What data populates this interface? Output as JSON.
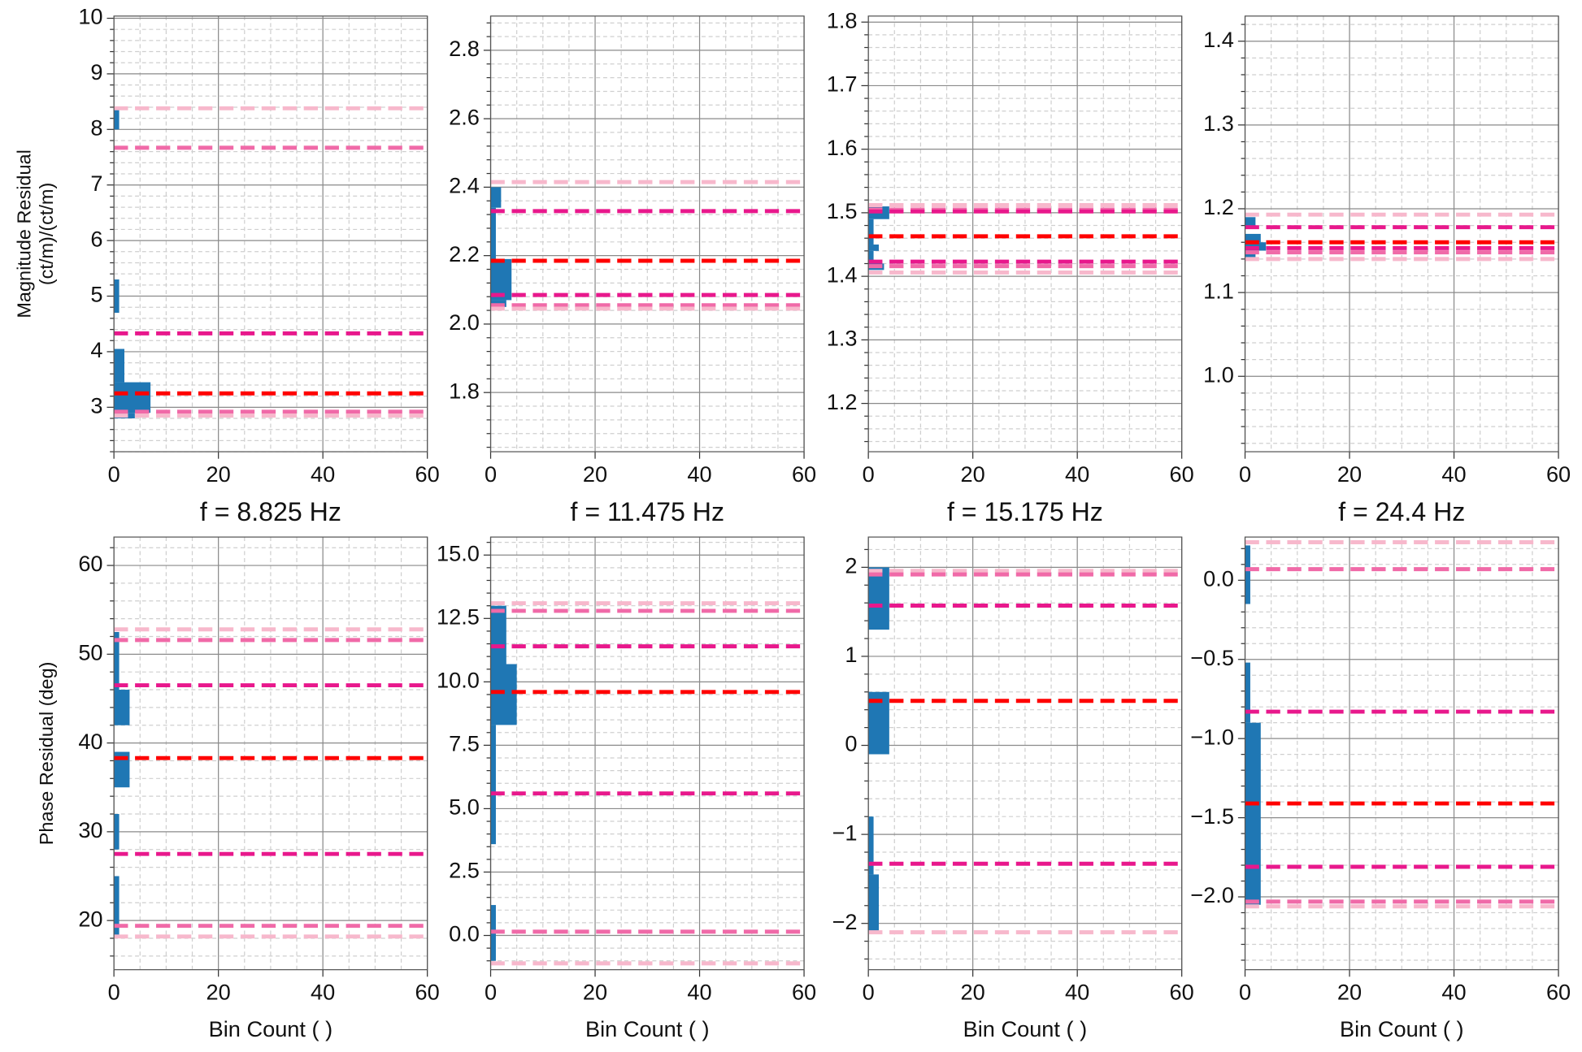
{
  "chart_data": [
    {
      "type": "histogram",
      "orientation": "horizontal",
      "color": "#1f77b4",
      "grid": true,
      "ylabel": [
        "Magnitude Residual",
        "(ct/m)/(ct/m)"
      ],
      "xlim": [
        0,
        60
      ],
      "xticks": [
        0,
        20,
        40,
        60
      ],
      "ylim": [
        2.2,
        10.04
      ],
      "yticks": [
        3,
        4,
        5,
        6,
        7,
        8,
        9,
        10
      ],
      "bins": [
        2.8,
        2.9,
        3.45,
        4.05,
        4.7,
        5.3,
        8.0,
        8.35
      ],
      "counts": [
        4,
        7,
        2,
        0,
        1,
        0,
        1
      ],
      "hlines": [
        {
          "value": 8.38,
          "color": "#f7b8cc"
        },
        {
          "value": 7.67,
          "color": "#f06aa8"
        },
        {
          "value": 4.33,
          "color": "#e8188c"
        },
        {
          "value": 3.25,
          "color": "#ff0000"
        },
        {
          "value": 2.92,
          "color": "#f06aa8"
        },
        {
          "value": 2.85,
          "color": "#f7b8cc"
        }
      ]
    },
    {
      "type": "histogram",
      "orientation": "horizontal",
      "color": "#1f77b4",
      "grid": true,
      "xlim": [
        0,
        60
      ],
      "xticks": [
        0,
        20,
        40,
        60
      ],
      "ylim": [
        1.627,
        2.9
      ],
      "yticks": [
        1.8,
        {
          "value": 2,
          "label": "2.0"
        },
        2.2,
        2.4,
        2.6,
        2.8
      ],
      "bins": [
        2.05,
        2.07,
        2.19,
        2.34,
        2.4
      ],
      "counts": [
        3,
        4,
        1,
        2
      ],
      "hlines": [
        {
          "value": 2.415,
          "color": "#f7b8cc"
        },
        {
          "value": 2.33,
          "color": "#e8188c"
        },
        {
          "value": 2.185,
          "color": "#ff0000"
        },
        {
          "value": 2.085,
          "color": "#e8188c"
        },
        {
          "value": 2.055,
          "color": "#f06aa8"
        },
        {
          "value": 2.045,
          "color": "#f7b8cc"
        }
      ]
    },
    {
      "type": "histogram",
      "orientation": "horizontal",
      "color": "#1f77b4",
      "grid": true,
      "xlim": [
        0,
        60
      ],
      "xticks": [
        0,
        20,
        40,
        60
      ],
      "ylim": [
        1.124,
        1.8095
      ],
      "yticks": [
        1.2,
        1.3,
        1.4,
        1.5,
        1.6,
        1.7,
        1.8
      ],
      "bins": [
        1.41,
        1.42,
        1.44,
        1.45,
        1.49,
        1.51
      ],
      "counts": [
        3,
        1,
        2,
        1,
        4
      ],
      "hlines": [
        {
          "value": 1.512,
          "color": "#f7b8cc"
        },
        {
          "value": 1.505,
          "color": "#f06aa8"
        },
        {
          "value": 1.502,
          "color": "#e8188c"
        },
        {
          "value": 1.463,
          "color": "#ff0000"
        },
        {
          "value": 1.423,
          "color": "#e8188c"
        },
        {
          "value": 1.416,
          "color": "#f06aa8"
        },
        {
          "value": 1.406,
          "color": "#f7b8cc"
        }
      ]
    },
    {
      "type": "histogram",
      "orientation": "horizontal",
      "color": "#1f77b4",
      "grid": true,
      "xlim": [
        0,
        60
      ],
      "xticks": [
        0,
        20,
        40,
        60
      ],
      "ylim": [
        0.91,
        1.43
      ],
      "yticks": [
        {
          "value": 1,
          "label": "1.0"
        },
        1.1,
        1.2,
        1.3,
        1.4
      ],
      "bins": [
        1.14,
        1.15,
        1.16,
        1.17,
        1.18,
        1.19
      ],
      "counts": [
        2,
        4,
        3,
        0,
        2
      ],
      "hlines": [
        {
          "value": 1.193,
          "color": "#f7b8cc"
        },
        {
          "value": 1.178,
          "color": "#e8188c"
        },
        {
          "value": 1.16,
          "color": "#ff0000"
        },
        {
          "value": 1.153,
          "color": "#e8188c"
        },
        {
          "value": 1.148,
          "color": "#f06aa8"
        },
        {
          "value": 1.14,
          "color": "#f7b8cc"
        }
      ]
    },
    {
      "type": "histogram",
      "orientation": "horizontal",
      "color": "#1f77b4",
      "grid": true,
      "title": "f = 8.825 Hz",
      "xlabel": "Bin Count ( )",
      "ylabel": [
        "Phase Residual (deg)"
      ],
      "xlim": [
        0,
        60
      ],
      "xticks": [
        0,
        20,
        40,
        60
      ],
      "ylim": [
        14.46,
        63.2
      ],
      "yticks": [
        20,
        30,
        40,
        50,
        60
      ],
      "bins": [
        18,
        25,
        28,
        32,
        35,
        39,
        42,
        46,
        52.5
      ],
      "counts": [
        1,
        0,
        1,
        0,
        3,
        0,
        3,
        1
      ],
      "hlines": [
        {
          "value": 52.8,
          "color": "#f7b8cc"
        },
        {
          "value": 51.6,
          "color": "#f06aa8"
        },
        {
          "value": 46.5,
          "color": "#e8188c"
        },
        {
          "value": 38.3,
          "color": "#ff0000"
        },
        {
          "value": 27.5,
          "color": "#e8188c"
        },
        {
          "value": 19.4,
          "color": "#f06aa8"
        },
        {
          "value": 18.2,
          "color": "#f7b8cc"
        }
      ]
    },
    {
      "type": "histogram",
      "orientation": "horizontal",
      "color": "#1f77b4",
      "grid": true,
      "title": "f = 11.475 Hz",
      "xlabel": "Bin Count ( )",
      "xlim": [
        0,
        60
      ],
      "xticks": [
        0,
        20,
        40,
        60
      ],
      "ylim": [
        -1.35,
        15.71
      ],
      "yticks": [
        {
          "value": 0,
          "label": "0.0"
        },
        2.5,
        {
          "value": 5,
          "label": "5.0"
        },
        7.5,
        {
          "value": 10,
          "label": "10.0"
        },
        12.5,
        {
          "value": 15,
          "label": "15.0"
        }
      ],
      "bins": [
        -1.0,
        1.2,
        3.6,
        8.3,
        10.7,
        13.0
      ],
      "counts": [
        1,
        0,
        1,
        5,
        3
      ],
      "hlines": [
        {
          "value": 13.1,
          "color": "#f7b8cc"
        },
        {
          "value": 12.8,
          "color": "#f06aa8"
        },
        {
          "value": 11.4,
          "color": "#e8188c"
        },
        {
          "value": 9.6,
          "color": "#ff0000"
        },
        {
          "value": 5.6,
          "color": "#e8188c"
        },
        {
          "value": 0.15,
          "color": "#f06aa8"
        },
        {
          "value": -1.1,
          "color": "#f7b8cc"
        }
      ]
    },
    {
      "type": "histogram",
      "orientation": "horizontal",
      "color": "#1f77b4",
      "grid": true,
      "title": "f = 15.175 Hz",
      "xlabel": "Bin Count ( )",
      "xlim": [
        0,
        60
      ],
      "xticks": [
        0,
        20,
        40,
        60
      ],
      "ylim": [
        -2.52,
        2.34
      ],
      "yticks": [
        {
          "value": -2,
          "label": "−2"
        },
        {
          "value": -1,
          "label": "−1"
        },
        0,
        1,
        2
      ],
      "bins": [
        -2.1,
        -1.45,
        -0.8,
        -0.1,
        0.6,
        1.3,
        2.0
      ],
      "counts": [
        2,
        1,
        0,
        4,
        0,
        4
      ],
      "hlines": [
        {
          "value": 1.96,
          "color": "#f7b8cc"
        },
        {
          "value": 1.92,
          "color": "#f06aa8"
        },
        {
          "value": 1.57,
          "color": "#e8188c"
        },
        {
          "value": 0.5,
          "color": "#ff0000"
        },
        {
          "value": -1.33,
          "color": "#e8188c"
        },
        {
          "value": -2.1,
          "color": "#f7b8cc"
        }
      ]
    },
    {
      "type": "histogram",
      "orientation": "horizontal",
      "color": "#1f77b4",
      "grid": true,
      "title": "f = 24.4 Hz",
      "xlabel": "Bin Count ( )",
      "xlim": [
        0,
        60
      ],
      "xticks": [
        0,
        20,
        40,
        60
      ],
      "ylim": [
        -2.46,
        0.273
      ],
      "yticks": [
        {
          "value": -2,
          "label": "−2.0"
        },
        {
          "value": -1.5,
          "label": "−1.5"
        },
        {
          "value": -1,
          "label": "−1.0"
        },
        {
          "value": -0.5,
          "label": "−0.5"
        },
        {
          "value": 0,
          "label": "0.0"
        }
      ],
      "bins": [
        -2.05,
        -0.9,
        -0.52,
        -0.15,
        0.22
      ],
      "counts": [
        3,
        1,
        0,
        1
      ],
      "hlines": [
        {
          "value": 0.24,
          "color": "#f7b8cc"
        },
        {
          "value": 0.07,
          "color": "#f06aa8"
        },
        {
          "value": -0.83,
          "color": "#e8188c"
        },
        {
          "value": -1.41,
          "color": "#ff0000"
        },
        {
          "value": -1.81,
          "color": "#e8188c"
        },
        {
          "value": -2.03,
          "color": "#f06aa8"
        },
        {
          "value": -2.06,
          "color": "#f7b8cc"
        }
      ]
    }
  ]
}
